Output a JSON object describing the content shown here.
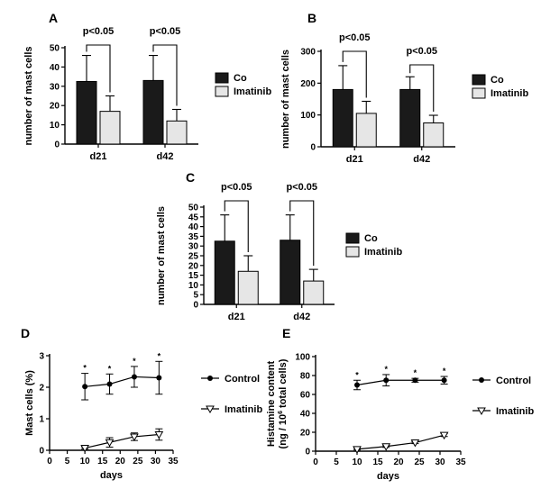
{
  "chart_data": [
    {
      "panel": "A",
      "type": "bar",
      "ylabel": "number of mast cells",
      "xlabel": "",
      "ylim": [
        0,
        50
      ],
      "yticks": [
        0,
        10,
        20,
        30,
        40,
        50
      ],
      "categories": [
        "d21",
        "d42"
      ],
      "series": [
        {
          "name": "Co",
          "color": "#1a1a1a",
          "values": [
            32.5,
            33
          ],
          "errors": [
            13.5,
            13
          ]
        },
        {
          "name": "Imatinib",
          "color": "#e6e6e6",
          "values": [
            17,
            12
          ],
          "errors": [
            8,
            6
          ]
        }
      ],
      "significance": [
        "p<0.05",
        "p<0.05"
      ],
      "legend_position": "right"
    },
    {
      "panel": "B",
      "type": "bar",
      "ylabel": "number of mast cells",
      "xlabel": "",
      "ylim": [
        0,
        300
      ],
      "yticks": [
        0,
        100,
        200,
        300
      ],
      "categories": [
        "d21",
        "d42"
      ],
      "series": [
        {
          "name": "Co",
          "color": "#1a1a1a",
          "values": [
            180,
            180
          ],
          "errors": [
            75,
            40
          ]
        },
        {
          "name": "Imatinib",
          "color": "#e6e6e6",
          "values": [
            105,
            75
          ],
          "errors": [
            38,
            24
          ]
        }
      ],
      "significance": [
        "p<0.05",
        "p<0.05"
      ],
      "legend_position": "right"
    },
    {
      "panel": "C",
      "type": "bar",
      "ylabel": "number of mast cells",
      "xlabel": "",
      "ylim": [
        0,
        50
      ],
      "yticks": [
        0,
        5,
        10,
        15,
        20,
        25,
        30,
        35,
        40,
        45,
        50
      ],
      "categories": [
        "d21",
        "d42"
      ],
      "series": [
        {
          "name": "Co",
          "color": "#1a1a1a",
          "values": [
            32.5,
            33
          ],
          "errors": [
            13.5,
            13
          ]
        },
        {
          "name": "Imatinib",
          "color": "#e6e6e6",
          "values": [
            17,
            12
          ],
          "errors": [
            8,
            6
          ]
        }
      ],
      "significance": [
        "p<0.05",
        "p<0.05"
      ],
      "legend_position": "right"
    },
    {
      "panel": "D",
      "type": "line",
      "ylabel": "Mast cells (%)",
      "xlabel": "days",
      "xlim": [
        0,
        35
      ],
      "xticks": [
        0,
        5,
        10,
        15,
        20,
        25,
        30,
        35
      ],
      "ylim": [
        0,
        3
      ],
      "yticks": [
        0,
        1,
        2,
        3
      ],
      "series": [
        {
          "name": "Control",
          "marker": "circle",
          "x": [
            10,
            17,
            24,
            31
          ],
          "y": [
            2.02,
            2.1,
            2.33,
            2.3
          ],
          "errors": [
            0.42,
            0.32,
            0.33,
            0.52
          ],
          "stars": [
            "*",
            "*",
            "*",
            "*"
          ]
        },
        {
          "name": "Imatinib",
          "marker": "triangle-down",
          "x": [
            10,
            17,
            24,
            31
          ],
          "y": [
            0.07,
            0.25,
            0.43,
            0.5
          ],
          "errors": [
            0.03,
            0.15,
            0.12,
            0.18
          ],
          "stars": []
        }
      ],
      "legend_position": "right"
    },
    {
      "panel": "E",
      "type": "line",
      "ylabel": "Histamine content",
      "ylabel2": "(ng / 10",
      "ylabel2_sup": "6",
      "ylabel2_tail": " total cells)",
      "xlabel": "days",
      "xlim": [
        0,
        35
      ],
      "xticks": [
        0,
        5,
        10,
        15,
        20,
        25,
        30,
        35
      ],
      "ylim": [
        0,
        100
      ],
      "yticks": [
        0,
        20,
        40,
        60,
        80,
        100
      ],
      "series": [
        {
          "name": "Control",
          "marker": "circle",
          "x": [
            10,
            17,
            24,
            31
          ],
          "y": [
            70,
            75,
            75,
            75
          ],
          "errors": [
            5,
            6,
            2,
            4
          ],
          "stars": [
            "*",
            "*",
            "*",
            "*"
          ]
        },
        {
          "name": "Imatinib",
          "marker": "triangle-down",
          "x": [
            10,
            17,
            24,
            31
          ],
          "y": [
            2,
            5,
            9,
            17
          ],
          "errors": [
            0.8,
            1,
            1,
            1.5
          ],
          "stars": []
        }
      ],
      "legend_position": "right"
    }
  ]
}
